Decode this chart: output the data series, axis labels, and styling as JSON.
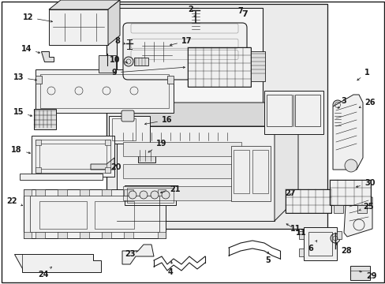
{
  "background_color": "#ffffff",
  "fig_width": 4.89,
  "fig_height": 3.6,
  "dpi": 100,
  "gray": "#1a1a1a",
  "light_fill": "#f0f0f0",
  "mid_fill": "#e0e0e0",
  "box_fill": "#e8e8e8"
}
